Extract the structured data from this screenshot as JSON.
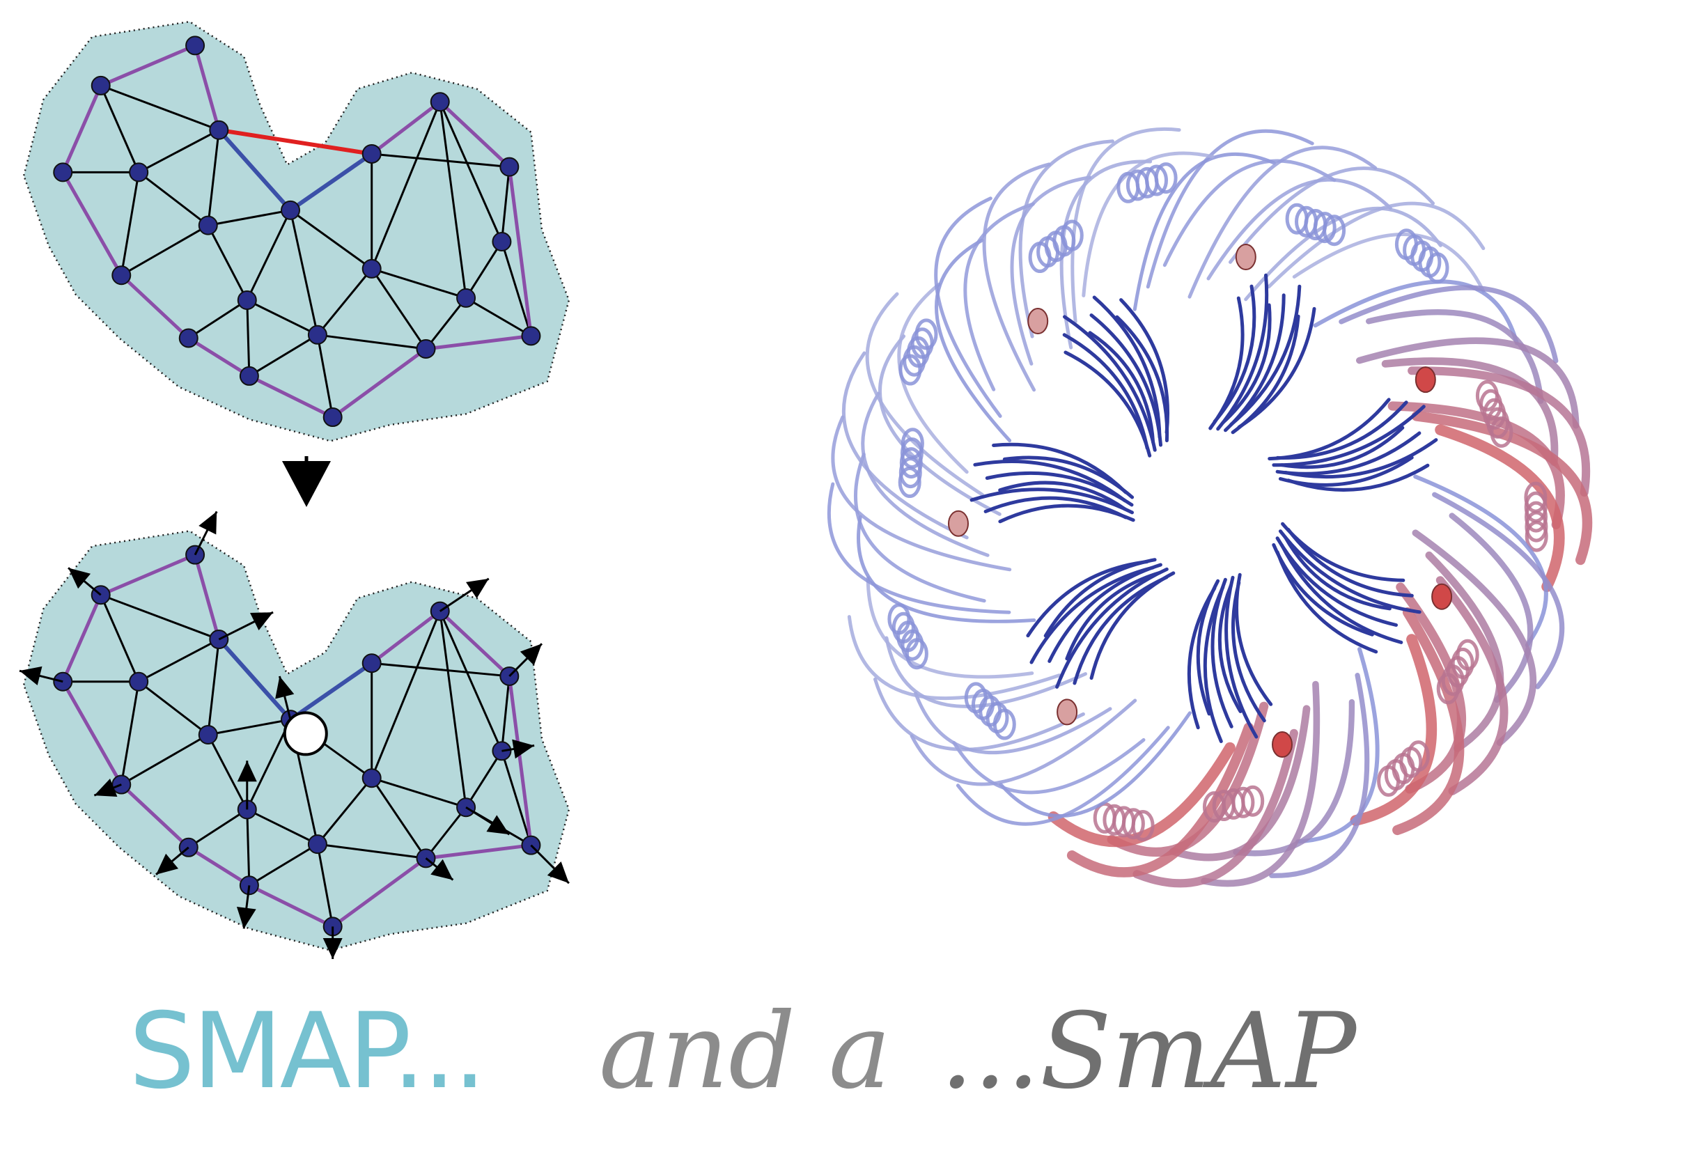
{
  "caption": {
    "part1": "SMAP...",
    "part2": "and a",
    "part3": "...SmAP"
  },
  "colors": {
    "shape_fill": "#b6d9db",
    "edge": "#000000",
    "boundary_edge": "#8b4ea8",
    "highlight_edge": "#3b50a8",
    "removed_edge": "#e02020",
    "node": "#2a2f8a",
    "caption_smap": "#76c1d0",
    "caption_and": "#8c8c8c",
    "caption_smap2": "#707070",
    "protein_core": "#2e3a9e",
    "protein_mid": "#8a93d8",
    "protein_hot": "#d86060"
  },
  "icons": {
    "flow_arrow": "down-triangle-icon",
    "empty_site": "circle-icon"
  }
}
